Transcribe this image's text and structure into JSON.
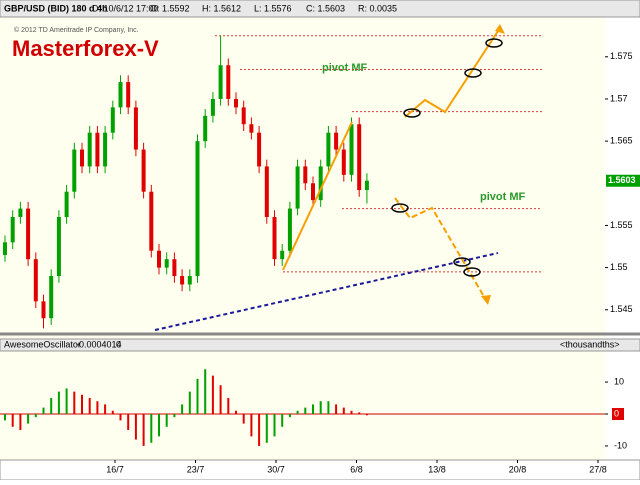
{
  "header": {
    "symbol": "GBP/USD (BID) 180 d 4h",
    "date": "D: 10/6/12 17:00",
    "open": "O: 1.5592",
    "high": "H: 1.5612",
    "low": "L: 1.5576",
    "close": "C: 1.5603",
    "range": "R: 0.0035"
  },
  "chart_data": [
    {
      "type": "candlestick",
      "title": "Masterforex-V",
      "subtitle": "© 2012 TD Ameritrade IP Company, Inc.",
      "annotations": [
        "pivot MF",
        "pivot MF"
      ],
      "xticks": [
        "16/7",
        "23/7",
        "30/7",
        "6/8",
        "13/8",
        "20/8",
        "27/8"
      ],
      "ylim": [
        1.5426,
        1.5796
      ],
      "yticks": [
        1.545,
        1.55,
        1.555,
        1.565,
        1.57,
        1.575
      ],
      "levels": [
        1.5775,
        1.5735,
        1.5685,
        1.557,
        1.5495
      ],
      "up_color": "#00a000",
      "down_color": "#e00000",
      "open": [
        1.5515,
        1.553,
        1.556,
        1.557,
        1.551,
        1.546,
        1.544,
        1.549,
        1.556,
        1.559,
        1.564,
        1.562,
        1.566,
        1.562,
        1.566,
        1.569,
        1.572,
        1.569,
        1.564,
        1.559,
        1.552,
        1.55,
        1.551,
        1.549,
        1.548,
        1.549,
        1.565,
        1.568,
        1.57,
        1.574,
        1.57,
        1.569,
        1.567,
        1.566,
        1.562,
        1.556,
        1.551,
        1.552,
        1.557,
        1.562,
        1.56,
        1.558,
        1.562,
        1.566,
        1.564,
        1.561,
        1.567,
        1.5592
      ],
      "high": [
        1.5538,
        1.5568,
        1.5578,
        1.5578,
        1.5518,
        1.5468,
        1.5498,
        1.5568,
        1.5598,
        1.5648,
        1.5648,
        1.5668,
        1.5668,
        1.5668,
        1.5698,
        1.5728,
        1.5728,
        1.5698,
        1.5648,
        1.5598,
        1.5528,
        1.5518,
        1.5518,
        1.5498,
        1.5498,
        1.5658,
        1.5688,
        1.5708,
        1.5775,
        1.5748,
        1.5708,
        1.5698,
        1.5678,
        1.5668,
        1.5628,
        1.5568,
        1.5528,
        1.5578,
        1.5628,
        1.5628,
        1.5608,
        1.5628,
        1.5668,
        1.5668,
        1.5648,
        1.5678,
        1.5678,
        1.5612
      ],
      "low": [
        1.5507,
        1.5522,
        1.5552,
        1.5502,
        1.5452,
        1.5428,
        1.5432,
        1.5482,
        1.5552,
        1.5582,
        1.5612,
        1.5612,
        1.5612,
        1.5612,
        1.5652,
        1.5682,
        1.5682,
        1.5632,
        1.5582,
        1.5512,
        1.5492,
        1.5492,
        1.5482,
        1.5472,
        1.5472,
        1.5482,
        1.5642,
        1.5672,
        1.5692,
        1.5692,
        1.5682,
        1.5662,
        1.5652,
        1.5612,
        1.5552,
        1.5502,
        1.5502,
        1.5512,
        1.5562,
        1.5592,
        1.5572,
        1.5572,
        1.5612,
        1.5632,
        1.5602,
        1.5602,
        1.5584,
        1.5576
      ],
      "close": [
        1.553,
        1.556,
        1.557,
        1.551,
        1.546,
        1.544,
        1.549,
        1.556,
        1.559,
        1.564,
        1.562,
        1.566,
        1.562,
        1.566,
        1.569,
        1.572,
        1.569,
        1.564,
        1.559,
        1.552,
        1.55,
        1.551,
        1.549,
        1.548,
        1.549,
        1.565,
        1.568,
        1.57,
        1.574,
        1.57,
        1.569,
        1.567,
        1.566,
        1.562,
        1.556,
        1.551,
        1.552,
        1.557,
        1.562,
        1.56,
        1.558,
        1.562,
        1.566,
        1.564,
        1.561,
        1.567,
        1.5592,
        1.5603
      ]
    },
    {
      "type": "bar",
      "title": "AwesomeOscillator",
      "subtitle": "-0.0004014",
      "parameter": "0",
      "unit": "<thousandths>",
      "ylim": [
        -14.4,
        19.4
      ],
      "yticks": [
        -10,
        0,
        10
      ],
      "up_color": "#00a000",
      "down_color": "#e00000",
      "values": [
        -2,
        -4,
        -5,
        -3,
        -1,
        2,
        5,
        7,
        8,
        7,
        6,
        5,
        4,
        3,
        1,
        -2,
        -5,
        -8,
        -10,
        -9,
        -7,
        -4,
        -1,
        3,
        7,
        11,
        14,
        12,
        9,
        5,
        1,
        -3,
        -7,
        -10,
        -9,
        -7,
        -4,
        -1,
        1,
        2,
        3,
        4,
        4,
        3,
        2,
        1,
        0.5,
        -0.4
      ]
    }
  ]
}
